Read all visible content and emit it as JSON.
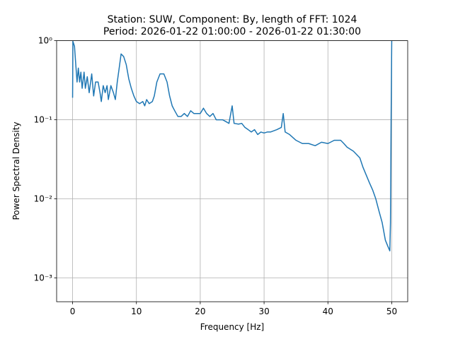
{
  "chart_data": {
    "type": "line",
    "title": "Station: SUW, Component: By, length of FFT: 1024",
    "subtitle": "Period: 2026-01-22 01:00:00 - 2026-01-22 01:30:00",
    "xlabel": "Frequency [Hz]",
    "ylabel": "Power Spectral Density",
    "x": [
      0,
      0.05,
      0.3,
      0.5,
      0.7,
      0.9,
      1.1,
      1.3,
      1.5,
      1.8,
      2.0,
      2.3,
      2.6,
      3.0,
      3.3,
      3.6,
      4.0,
      4.3,
      4.5,
      4.8,
      5.1,
      5.4,
      5.6,
      6.0,
      6.4,
      6.7,
      7.0,
      7.3,
      7.6,
      8.0,
      8.4,
      8.8,
      9.2,
      9.6,
      10.0,
      10.5,
      11.0,
      11.3,
      11.6,
      12.0,
      12.5,
      12.8,
      13.2,
      13.7,
      14.3,
      14.8,
      15.2,
      15.6,
      16.0,
      16.5,
      17.0,
      17.5,
      18.0,
      18.5,
      19.0,
      19.5,
      20.0,
      20.5,
      21.0,
      21.5,
      22.0,
      22.5,
      23.0,
      23.5,
      24.0,
      24.5,
      25.0,
      25.3,
      26.0,
      26.5,
      27.0,
      27.5,
      28.0,
      28.5,
      29.0,
      29.5,
      30.0,
      30.5,
      31.0,
      32.0,
      32.7,
      33.0,
      33.3,
      34.0,
      35.0,
      36.0,
      37.0,
      38.0,
      39.0,
      40.0,
      41.0,
      42.0,
      42.5,
      43.0,
      44.0,
      45.0,
      45.5,
      46.0,
      46.5,
      47.0,
      47.5,
      48.0,
      48.5,
      49.0,
      49.4,
      49.7,
      49.8,
      49.9,
      50.0
    ],
    "series": [
      {
        "color": "#1f77b4",
        "values": [
          0.19,
          0.98,
          0.85,
          0.5,
          0.3,
          0.45,
          0.3,
          0.4,
          0.25,
          0.4,
          0.25,
          0.35,
          0.22,
          0.38,
          0.2,
          0.3,
          0.3,
          0.22,
          0.17,
          0.27,
          0.22,
          0.27,
          0.18,
          0.27,
          0.22,
          0.18,
          0.3,
          0.45,
          0.68,
          0.63,
          0.5,
          0.33,
          0.25,
          0.2,
          0.17,
          0.16,
          0.17,
          0.15,
          0.18,
          0.16,
          0.17,
          0.2,
          0.3,
          0.38,
          0.38,
          0.3,
          0.2,
          0.15,
          0.13,
          0.11,
          0.11,
          0.12,
          0.11,
          0.13,
          0.12,
          0.12,
          0.12,
          0.14,
          0.12,
          0.11,
          0.12,
          0.1,
          0.1,
          0.1,
          0.095,
          0.09,
          0.15,
          0.09,
          0.088,
          0.09,
          0.08,
          0.075,
          0.07,
          0.075,
          0.065,
          0.07,
          0.068,
          0.07,
          0.07,
          0.075,
          0.08,
          0.12,
          0.07,
          0.065,
          0.055,
          0.05,
          0.05,
          0.047,
          0.052,
          0.05,
          0.055,
          0.055,
          0.05,
          0.045,
          0.04,
          0.033,
          0.025,
          0.02,
          0.016,
          0.013,
          0.01,
          0.007,
          0.005,
          0.003,
          0.0025,
          0.0022,
          0.005,
          0.1,
          1.0
        ]
      }
    ],
    "xlim": [
      -2.5,
      52.5
    ],
    "xticks": [
      0,
      10,
      20,
      30,
      40,
      50
    ],
    "ylim": [
      0.0005,
      1
    ],
    "log_y": true,
    "yticks": [
      {
        "value": 0.001,
        "label": "10⁻³"
      },
      {
        "value": 0.01,
        "label": "10⁻²"
      },
      {
        "value": 0.1,
        "label": "10⁻¹"
      },
      {
        "value": 1,
        "label": "10⁰"
      }
    ],
    "grid": true
  }
}
